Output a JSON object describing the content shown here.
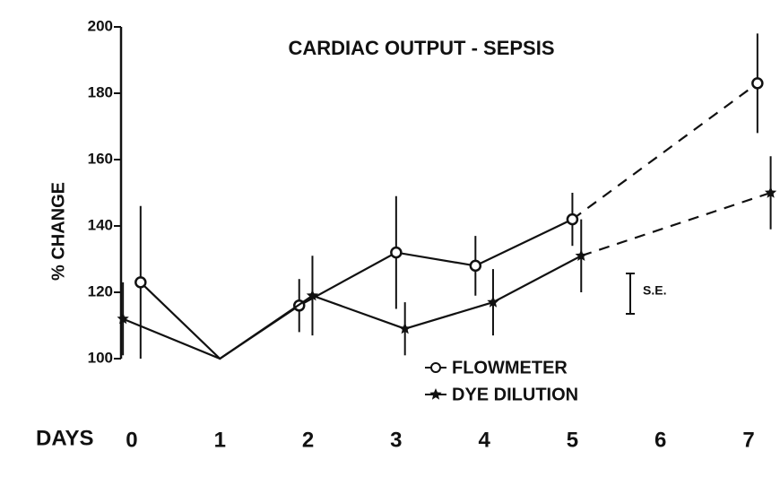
{
  "chart_data": {
    "type": "line",
    "title": "CARDIAC OUTPUT - SEPSIS",
    "ylabel": "% CHANGE",
    "xlabel": "DAYS",
    "xlim": [
      -0.3,
      7.3
    ],
    "xticks": [
      0,
      1,
      2,
      3,
      4,
      5,
      6,
      7
    ],
    "ylim": [
      100,
      200
    ],
    "yticks": [
      100,
      120,
      140,
      160,
      180,
      200
    ],
    "dashed_after": 5,
    "error_legend": "S.E.",
    "series": [
      {
        "name": "FLOWMETER",
        "color": "#111111",
        "marker": "open-circle",
        "x": [
          0.1,
          1,
          1.9,
          3,
          3.9,
          5,
          7.1
        ],
        "values": [
          123,
          100,
          116,
          132,
          128,
          142,
          183
        ],
        "errors": [
          23,
          null,
          8,
          17,
          9,
          8,
          15
        ]
      },
      {
        "name": "DYE DILUTION",
        "color": "#111111",
        "marker": "star",
        "x": [
          -0.1,
          1,
          2.05,
          3.1,
          4.1,
          5.1,
          7.25
        ],
        "values": [
          112,
          100,
          119,
          109,
          117,
          131,
          150
        ],
        "errors": [
          11,
          null,
          12,
          8,
          10,
          11,
          11
        ]
      }
    ]
  }
}
